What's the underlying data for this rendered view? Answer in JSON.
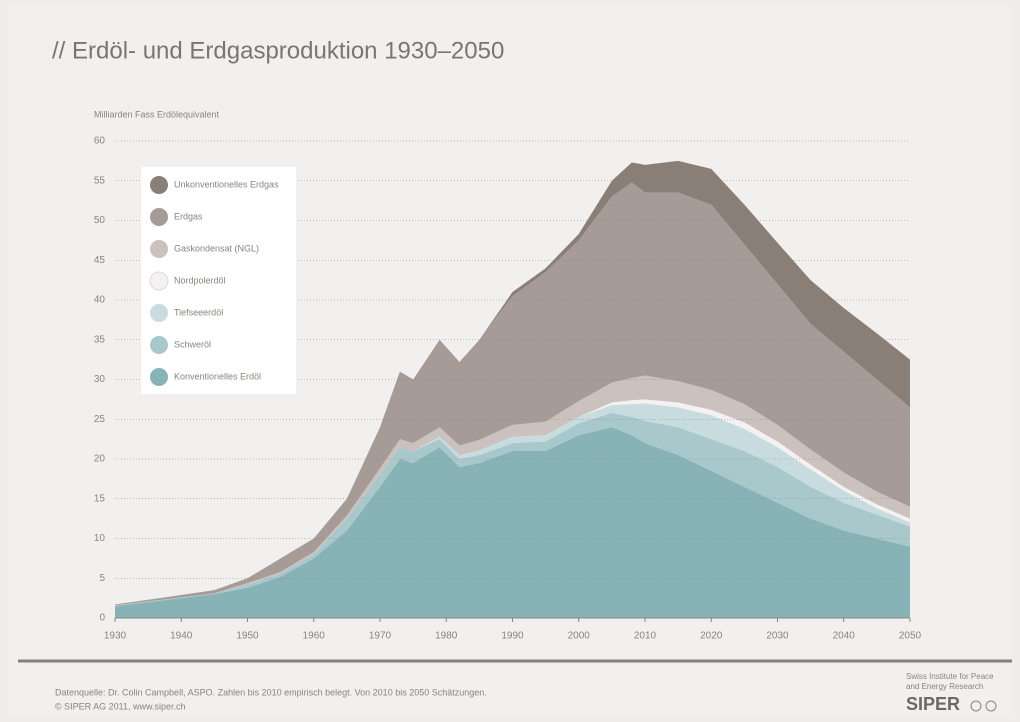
{
  "chart_data": {
    "type": "stacked_area",
    "title": "// Erdöl- und Erdgasproduktion 1930–2050",
    "y_label": "Milliarden Fass Erdölequivalent",
    "source": "Datenquelle: Dr. Colin Campbell, ASPO. Zahlen bis 2010 empirisch belegt. Von 2010 bis 2050 Schätzungen.",
    "copyright": "© SIPER AG 2011, www.siper.ch",
    "x": [
      1930,
      1935,
      1940,
      1945,
      1950,
      1955,
      1960,
      1965,
      1970,
      1973,
      1975,
      1979,
      1982,
      1985,
      1990,
      1995,
      2000,
      2005,
      2008,
      2010,
      2015,
      2020,
      2025,
      2030,
      2035,
      2040,
      2045,
      2050
    ],
    "xlim": [
      1930,
      2050
    ],
    "xticks": [
      1930,
      1940,
      1950,
      1960,
      1970,
      1980,
      1990,
      2000,
      2010,
      2020,
      2030,
      2040,
      2050
    ],
    "ylim": [
      0,
      60
    ],
    "yticks": [
      0,
      5,
      10,
      15,
      20,
      25,
      30,
      35,
      40,
      45,
      50,
      55,
      60
    ],
    "grid": true,
    "series": [
      {
        "name": "Konventionelles Erdöl",
        "color": "#88b3b6",
        "values": [
          1.5,
          2,
          2.5,
          3,
          3.8,
          5.2,
          7.5,
          11,
          16.5,
          20,
          19.5,
          21.5,
          19,
          19.5,
          21,
          21,
          23,
          24,
          23,
          22,
          20.5,
          18.5,
          16.5,
          14.5,
          12.5,
          11,
          10,
          9
        ]
      },
      {
        "name": "Schweröl",
        "color": "#a9c8cb",
        "values": [
          0.1,
          0.1,
          0.1,
          0.1,
          0.4,
          0.4,
          0.5,
          1.5,
          1.5,
          1.5,
          1.5,
          1,
          1,
          1,
          1,
          1.2,
          1.5,
          1.8,
          2.3,
          2.8,
          3.5,
          4,
          4.5,
          4.5,
          4,
          3.5,
          3,
          2.5
        ]
      },
      {
        "name": "Tiefseeerdöl",
        "color": "#c8dcdf",
        "values": [
          0,
          0,
          0,
          0,
          0,
          0,
          0,
          0,
          0,
          0,
          0,
          0.3,
          0.5,
          0.6,
          0.8,
          0.8,
          0.8,
          1,
          1.6,
          2.2,
          2.5,
          3,
          2.8,
          2.5,
          2.2,
          1.5,
          0.8,
          0.5
        ]
      },
      {
        "name": "Nordpolerdöl",
        "color": "#f5f1f1",
        "values": [
          0,
          0,
          0,
          0,
          0,
          0,
          0,
          0,
          0,
          0,
          0,
          0,
          0,
          0,
          0,
          0,
          0,
          0.3,
          0.5,
          0.5,
          0.6,
          0.7,
          0.8,
          0.7,
          0.6,
          0.5,
          0.5,
          0.5
        ]
      },
      {
        "name": "Gaskondensat (NGL)",
        "color": "#cbc1bf",
        "values": [
          0,
          0,
          0,
          0,
          0.2,
          0.2,
          0.3,
          0.4,
          0.8,
          1,
          1,
          1.2,
          1.2,
          1.3,
          1.5,
          1.7,
          2,
          2.5,
          2.8,
          3,
          2.7,
          2.5,
          2.3,
          2.1,
          1.9,
          1.8,
          1.6,
          1.5
        ]
      },
      {
        "name": "Erdgas",
        "color": "#a69b96",
        "values": [
          0.1,
          0.2,
          0.3,
          0.4,
          0.6,
          1.7,
          1.7,
          2.1,
          5.2,
          8.5,
          8,
          11,
          10.5,
          12.6,
          16.2,
          18.8,
          20.2,
          23.4,
          24.6,
          23,
          23.7,
          23.3,
          20.1,
          17.7,
          15.8,
          15.2,
          14.1,
          12.5
        ]
      },
      {
        "name": "Unkonventionelles Erdgas",
        "color": "#8a7f77",
        "values": [
          0,
          0,
          0,
          0,
          0,
          0,
          0,
          0,
          0,
          0,
          0,
          0,
          0,
          0,
          0.5,
          0.5,
          0.8,
          2,
          2.5,
          3.5,
          4,
          4.5,
          5,
          5.2,
          5.5,
          5.5,
          5.8,
          6
        ]
      }
    ]
  },
  "logo": {
    "tagline": [
      "Swiss Institute for Peace",
      "and Energy Research"
    ],
    "name": "SIPER"
  }
}
